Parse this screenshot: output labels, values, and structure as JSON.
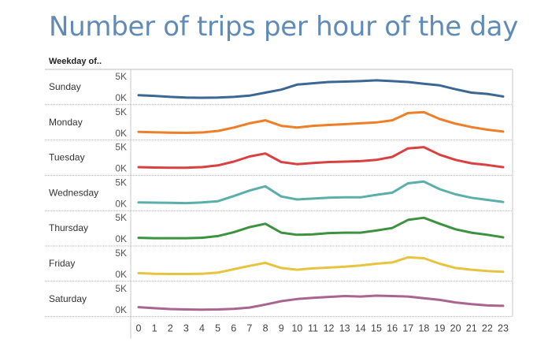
{
  "title": "Number of trips per hour of the day",
  "row_header": "Weekday of..",
  "colors": {
    "Sunday": "#3a6794",
    "Monday": "#ee7f28",
    "Tuesday": "#d94140",
    "Wednesday": "#5ab0a9",
    "Thursday": "#3d9240",
    "Friday": "#e7c440",
    "Saturday": "#a9648f"
  },
  "chart_data": {
    "type": "line",
    "title": "Number of trips per hour of the day",
    "xlabel": "",
    "ylabel": "",
    "x": [
      0,
      1,
      2,
      3,
      4,
      5,
      6,
      7,
      8,
      9,
      10,
      11,
      12,
      13,
      14,
      15,
      16,
      17,
      18,
      19,
      20,
      21,
      22,
      23
    ],
    "y_ticks": [
      "0K",
      "5K"
    ],
    "ylim": [
      0,
      6500
    ],
    "grid": true,
    "series": [
      {
        "name": "Sunday",
        "values": [
          600,
          450,
          200,
          50,
          0,
          50,
          200,
          500,
          1200,
          1900,
          3100,
          3400,
          3700,
          3800,
          3900,
          4100,
          3900,
          3700,
          3300,
          2900,
          2000,
          1200,
          900,
          300
        ]
      },
      {
        "name": "Monday",
        "values": [
          300,
          200,
          100,
          50,
          150,
          500,
          1300,
          2300,
          3000,
          1700,
          1300,
          1700,
          1900,
          2100,
          2300,
          2500,
          3000,
          4700,
          4900,
          3300,
          2200,
          1400,
          800,
          350
        ]
      },
      {
        "name": "Tuesday",
        "values": [
          300,
          200,
          150,
          150,
          300,
          700,
          1600,
          2800,
          3500,
          1500,
          1000,
          1250,
          1500,
          1600,
          1700,
          2000,
          2700,
          4700,
          5000,
          3200,
          2000,
          1200,
          800,
          300
        ]
      },
      {
        "name": "Wednesday",
        "values": [
          300,
          250,
          200,
          150,
          300,
          600,
          1800,
          3100,
          4100,
          1700,
          1000,
          1200,
          1400,
          1500,
          1500,
          2100,
          2600,
          4800,
          5200,
          3400,
          2200,
          1400,
          900,
          400
        ]
      },
      {
        "name": "Thursday",
        "values": [
          300,
          200,
          200,
          200,
          300,
          700,
          1600,
          2800,
          3600,
          1500,
          1000,
          1100,
          1400,
          1500,
          1500,
          2000,
          2600,
          4500,
          5000,
          3600,
          2300,
          1500,
          1000,
          400
        ]
      },
      {
        "name": "Friday",
        "values": [
          300,
          150,
          100,
          100,
          150,
          400,
          1200,
          2000,
          2700,
          1500,
          1100,
          1400,
          1600,
          1800,
          2100,
          2500,
          2800,
          4000,
          3800,
          2500,
          1500,
          1100,
          800,
          600
        ]
      },
      {
        "name": "Saturday",
        "values": [
          600,
          350,
          150,
          50,
          0,
          50,
          200,
          500,
          1200,
          2000,
          2500,
          2800,
          3000,
          3200,
          3100,
          3300,
          3200,
          3100,
          2700,
          2300,
          1700,
          1300,
          1000,
          900
        ]
      }
    ]
  }
}
